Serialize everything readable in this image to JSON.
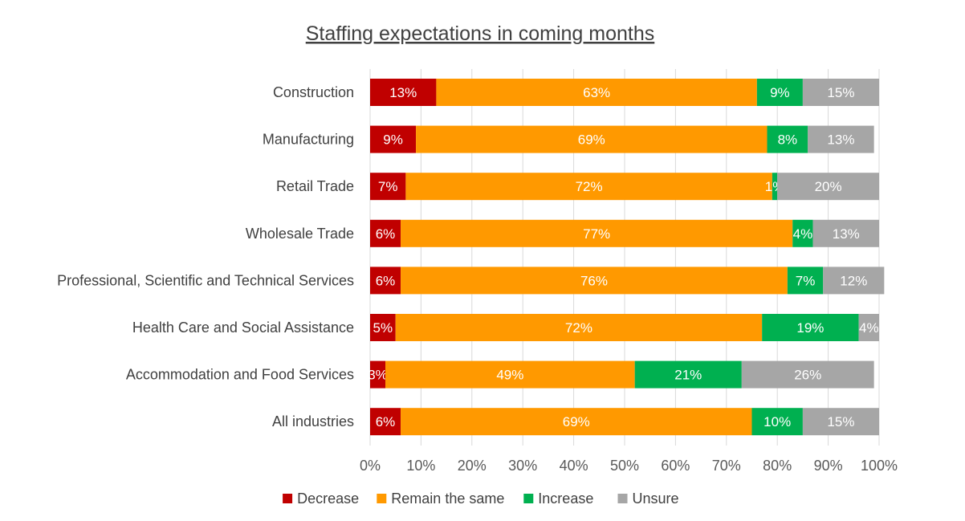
{
  "chart_data": {
    "type": "bar",
    "orientation": "horizontal",
    "stacked": "percent",
    "title": "Staffing expectations in coming months",
    "categories": [
      "Construction",
      "Manufacturing",
      "Retail Trade",
      "Wholesale Trade",
      "Professional, Scientific and Technical Services",
      "Health Care and Social Assistance",
      "Accommodation and Food Services",
      "All industries"
    ],
    "series": [
      {
        "name": "Decrease",
        "color": "#c00000",
        "values": [
          13,
          9,
          7,
          6,
          6,
          5,
          3,
          6
        ],
        "labels": [
          "13%",
          "9%",
          "7%",
          "6%",
          "6%",
          "5%",
          "3%",
          "6%"
        ]
      },
      {
        "name": "Remain the same",
        "color": "#ff9900",
        "values": [
          63,
          69,
          72,
          77,
          76,
          72,
          49,
          69
        ],
        "labels": [
          "63%",
          "69%",
          "72%",
          "77%",
          "76%",
          "72%",
          "49%",
          "69%"
        ]
      },
      {
        "name": "Increase",
        "color": "#00b050",
        "values": [
          9,
          8,
          1,
          4,
          7,
          19,
          21,
          10
        ],
        "labels": [
          "9%",
          "8%",
          "1%",
          "4%",
          "7%",
          "19%",
          "21%",
          "10%"
        ]
      },
      {
        "name": "Unsure",
        "color": "#a6a6a6",
        "values": [
          15,
          13,
          20,
          13,
          12,
          4,
          26,
          15
        ],
        "labels": [
          "15%",
          "13%",
          "20%",
          "13%",
          "12%",
          "4%",
          "26%",
          "15%"
        ]
      }
    ],
    "xlim": [
      0,
      100
    ],
    "xticks": [
      "0%",
      "10%",
      "20%",
      "30%",
      "40%",
      "50%",
      "60%",
      "70%",
      "80%",
      "90%",
      "100%"
    ],
    "grid": "vertical",
    "legend": "bottom-center"
  }
}
